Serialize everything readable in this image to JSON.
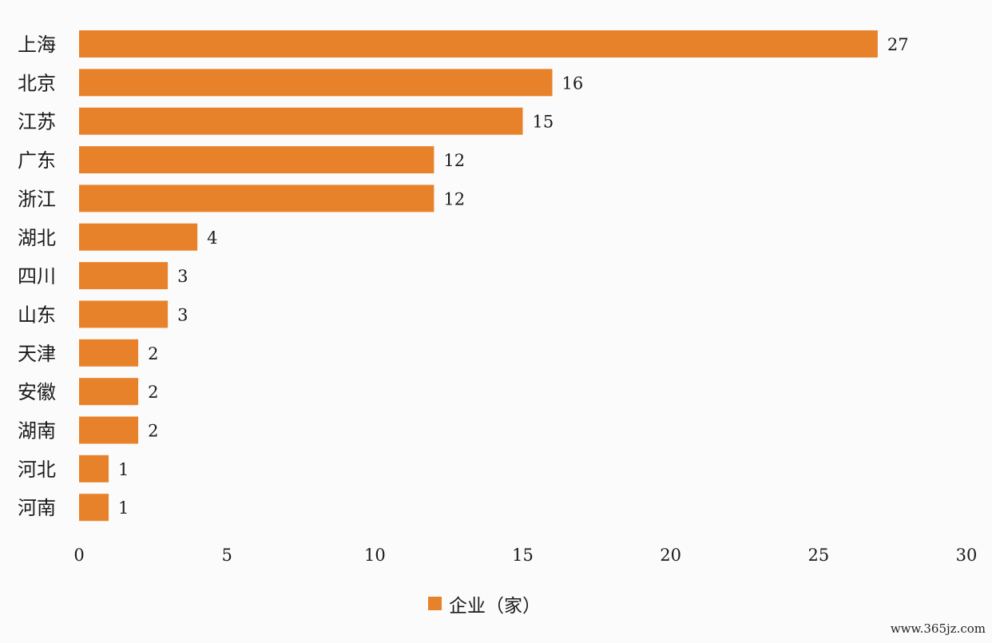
{
  "chart_data": {
    "type": "bar",
    "orientation": "horizontal",
    "categories": [
      "上海",
      "北京",
      "江苏",
      "广东",
      "浙江",
      "湖北",
      "四川",
      "山东",
      "天津",
      "安徽",
      "湖南",
      "河北",
      "河南"
    ],
    "series": [
      {
        "name": "企业（家）",
        "values": [
          27,
          16,
          15,
          12,
          12,
          4,
          3,
          3,
          2,
          2,
          2,
          1,
          1
        ],
        "color": "#e8822a"
      }
    ],
    "xlim": [
      0,
      30
    ],
    "xticks": [
      "0",
      "5",
      "10",
      "15",
      "20",
      "25",
      "30"
    ],
    "grid": false,
    "legend_position": "bottom"
  },
  "watermark": "www.365jz.com"
}
